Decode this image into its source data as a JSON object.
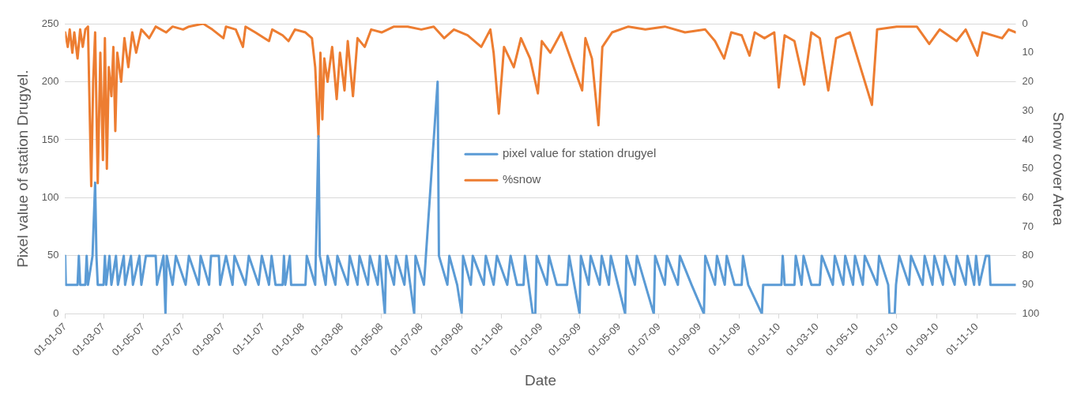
{
  "chart_data": {
    "type": "line",
    "xlabel": "Date",
    "ylabel": "Pixel value of station Drugyel.",
    "y2label": "Snow cover Area",
    "legend": "center",
    "grid": "y",
    "marker": "none",
    "line_style": "solid",
    "xlim": [
      "2007-01-01",
      "2010-12-31"
    ],
    "xticks": [
      {
        "value": "2007-01-01",
        "label": "01-01-07"
      },
      {
        "value": "2007-03-01",
        "label": "01-03-07"
      },
      {
        "value": "2007-05-01",
        "label": "01-05-07"
      },
      {
        "value": "2007-07-01",
        "label": "01-07-07"
      },
      {
        "value": "2007-09-01",
        "label": "01-09-07"
      },
      {
        "value": "2007-11-01",
        "label": "01-11-07"
      },
      {
        "value": "2008-01-01",
        "label": "01-01-08"
      },
      {
        "value": "2008-03-01",
        "label": "01-03-08"
      },
      {
        "value": "2008-05-01",
        "label": "01-05-08"
      },
      {
        "value": "2008-07-01",
        "label": "01-07-08"
      },
      {
        "value": "2008-09-01",
        "label": "01-09-08"
      },
      {
        "value": "2008-11-01",
        "label": "01-11-08"
      },
      {
        "value": "2009-01-01",
        "label": "01-01-09"
      },
      {
        "value": "2009-03-01",
        "label": "01-03-09"
      },
      {
        "value": "2009-05-01",
        "label": "01-05-09"
      },
      {
        "value": "2009-07-01",
        "label": "01-07-09"
      },
      {
        "value": "2009-09-01",
        "label": "01-09-09"
      },
      {
        "value": "2009-11-01",
        "label": "01-11-09"
      },
      {
        "value": "2010-01-01",
        "label": "01-01-10"
      },
      {
        "value": "2010-03-01",
        "label": "01-03-10"
      },
      {
        "value": "2010-05-01",
        "label": "01-05-10"
      },
      {
        "value": "2010-07-01",
        "label": "01-07-10"
      },
      {
        "value": "2010-09-01",
        "label": "01-09-10"
      },
      {
        "value": "2010-11-01",
        "label": "01-11-10"
      }
    ],
    "ylim": [
      0,
      250
    ],
    "yticks": [
      0,
      50,
      100,
      150,
      200,
      250
    ],
    "y2lim": [
      100,
      0
    ],
    "y2ticks": [
      0,
      10,
      20,
      30,
      40,
      50,
      60,
      70,
      80,
      90,
      100
    ],
    "series": [
      {
        "name": "pixel value for station drugyel",
        "color": "#5b9bd5",
        "x": [
          "2007-01-01",
          "2007-01-02",
          "2007-01-20",
          "2007-01-22",
          "2007-01-24",
          "2007-02-01",
          "2007-02-03",
          "2007-02-05",
          "2007-02-12",
          "2007-02-16",
          "2007-02-18",
          "2007-02-20",
          "2007-03-01",
          "2007-03-03",
          "2007-03-05",
          "2007-03-10",
          "2007-03-13",
          "2007-03-20",
          "2007-03-23",
          "2007-04-01",
          "2007-04-03",
          "2007-04-12",
          "2007-04-15",
          "2007-04-25",
          "2007-04-28",
          "2007-05-05",
          "2007-05-20",
          "2007-05-22",
          "2007-06-01",
          "2007-06-04",
          "2007-06-06",
          "2007-06-15",
          "2007-06-20",
          "2007-07-05",
          "2007-07-10",
          "2007-07-25",
          "2007-07-28",
          "2007-08-10",
          "2007-08-13",
          "2007-08-25",
          "2007-08-27",
          "2007-09-05",
          "2007-09-15",
          "2007-09-18",
          "2007-10-05",
          "2007-10-10",
          "2007-10-25",
          "2007-10-30",
          "2007-11-10",
          "2007-11-14",
          "2007-11-20",
          "2007-12-01",
          "2007-12-03",
          "2007-12-05",
          "2007-12-12",
          "2007-12-14",
          "2008-01-05",
          "2008-01-07",
          "2008-01-20",
          "2008-01-25",
          "2008-01-27",
          "2008-02-05",
          "2008-02-08",
          "2008-02-20",
          "2008-02-23",
          "2008-03-10",
          "2008-03-13",
          "2008-03-25",
          "2008-03-28",
          "2008-04-10",
          "2008-04-13",
          "2008-04-25",
          "2008-04-28",
          "2008-05-06",
          "2008-05-08",
          "2008-05-20",
          "2008-05-23",
          "2008-06-05",
          "2008-06-08",
          "2008-06-20",
          "2008-06-22",
          "2008-07-05",
          "2008-07-08",
          "2008-07-26",
          "2008-07-28",
          "2008-08-10",
          "2008-08-13",
          "2008-08-25",
          "2008-09-01",
          "2008-09-03",
          "2008-09-15",
          "2008-09-18",
          "2008-10-05",
          "2008-10-08",
          "2008-10-20",
          "2008-10-25",
          "2008-11-10",
          "2008-11-15",
          "2008-11-25",
          "2008-12-05",
          "2008-12-07",
          "2008-12-19",
          "2008-12-23",
          "2008-12-25",
          "2009-01-10",
          "2009-01-13",
          "2009-01-25",
          "2009-02-10",
          "2009-02-13",
          "2009-03-01",
          "2009-03-03",
          "2009-03-15",
          "2009-03-18",
          "2009-04-01",
          "2009-04-04",
          "2009-04-15",
          "2009-04-18",
          "2009-05-10",
          "2009-05-12",
          "2009-05-25",
          "2009-05-28",
          "2009-06-10",
          "2009-06-23",
          "2009-06-25",
          "2009-07-10",
          "2009-07-13",
          "2009-07-30",
          "2009-08-02",
          "2009-08-20",
          "2009-09-08",
          "2009-09-10",
          "2009-09-25",
          "2009-09-28",
          "2009-10-10",
          "2009-10-13",
          "2009-10-25",
          "2009-11-05",
          "2009-11-07",
          "2009-11-15",
          "2009-12-06",
          "2009-12-08",
          "2010-01-05",
          "2010-01-07",
          "2010-01-10",
          "2010-01-25",
          "2010-01-27",
          "2010-02-05",
          "2010-02-08",
          "2010-02-20",
          "2010-03-05",
          "2010-03-08",
          "2010-03-25",
          "2010-03-28",
          "2010-04-10",
          "2010-04-13",
          "2010-04-25",
          "2010-04-28",
          "2010-05-10",
          "2010-05-13",
          "2010-06-01",
          "2010-06-04",
          "2010-06-18",
          "2010-06-20",
          "2010-06-28",
          "2010-06-30",
          "2010-07-05",
          "2010-07-20",
          "2010-07-23",
          "2010-08-10",
          "2010-08-13",
          "2010-08-25",
          "2010-08-28",
          "2010-09-10",
          "2010-09-13",
          "2010-09-28",
          "2010-10-01",
          "2010-10-15",
          "2010-10-18",
          "2010-10-28",
          "2010-10-31",
          "2010-11-05",
          "2010-11-15",
          "2010-11-20",
          "2010-11-22",
          "2010-12-31"
        ],
        "values": [
          50,
          25,
          25,
          50,
          25,
          25,
          50,
          25,
          50,
          113,
          50,
          25,
          25,
          50,
          25,
          50,
          25,
          50,
          25,
          50,
          25,
          50,
          25,
          50,
          25,
          50,
          50,
          25,
          50,
          0,
          50,
          25,
          50,
          25,
          50,
          25,
          50,
          25,
          50,
          50,
          25,
          50,
          25,
          50,
          25,
          50,
          25,
          50,
          25,
          50,
          25,
          25,
          50,
          25,
          50,
          25,
          25,
          50,
          25,
          153,
          50,
          25,
          50,
          25,
          50,
          25,
          50,
          25,
          50,
          25,
          50,
          25,
          50,
          0,
          50,
          25,
          50,
          25,
          50,
          0,
          50,
          25,
          50,
          200,
          50,
          25,
          50,
          25,
          0,
          50,
          25,
          50,
          25,
          50,
          25,
          50,
          25,
          50,
          25,
          25,
          50,
          0,
          0,
          50,
          25,
          50,
          25,
          25,
          50,
          0,
          50,
          25,
          50,
          25,
          50,
          25,
          50,
          0,
          50,
          25,
          50,
          25,
          0,
          50,
          25,
          50,
          25,
          50,
          25,
          0,
          50,
          25,
          50,
          25,
          50,
          25,
          25,
          50,
          25,
          0,
          25,
          25,
          50,
          25,
          25,
          50,
          25,
          50,
          25,
          25,
          50,
          25,
          50,
          25,
          50,
          25,
          50,
          25,
          50,
          25,
          50,
          25,
          0,
          0,
          25,
          50,
          25,
          50,
          25,
          50,
          25,
          50,
          25,
          50,
          25,
          50,
          25,
          50,
          25,
          50,
          25,
          50,
          50,
          25,
          25
        ]
      },
      {
        "name": "%snow",
        "color": "#ed7d31",
        "axis": "y2",
        "x": [
          "2007-01-01",
          "2007-01-05",
          "2007-01-08",
          "2007-01-12",
          "2007-01-15",
          "2007-01-20",
          "2007-01-24",
          "2007-01-28",
          "2007-02-01",
          "2007-02-05",
          "2007-02-10",
          "2007-02-13",
          "2007-02-16",
          "2007-02-20",
          "2007-02-24",
          "2007-02-28",
          "2007-03-03",
          "2007-03-06",
          "2007-03-09",
          "2007-03-13",
          "2007-03-16",
          "2007-03-19",
          "2007-03-22",
          "2007-03-28",
          "2007-04-02",
          "2007-04-08",
          "2007-04-14",
          "2007-04-20",
          "2007-04-28",
          "2007-05-10",
          "2007-05-20",
          "2007-06-05",
          "2007-06-15",
          "2007-07-01",
          "2007-07-10",
          "2007-08-01",
          "2007-08-15",
          "2007-09-01",
          "2007-09-05",
          "2007-09-20",
          "2007-10-01",
          "2007-10-05",
          "2007-10-20",
          "2007-11-10",
          "2007-11-15",
          "2007-12-01",
          "2007-12-10",
          "2007-12-20",
          "2008-01-05",
          "2008-01-15",
          "2008-01-20",
          "2008-01-25",
          "2008-01-28",
          "2008-01-31",
          "2008-02-03",
          "2008-02-08",
          "2008-02-15",
          "2008-02-22",
          "2008-02-27",
          "2008-03-05",
          "2008-03-10",
          "2008-03-18",
          "2008-03-25",
          "2008-04-05",
          "2008-04-15",
          "2008-05-01",
          "2008-05-20",
          "2008-06-10",
          "2008-07-01",
          "2008-07-20",
          "2008-08-05",
          "2008-08-20",
          "2008-09-10",
          "2008-10-01",
          "2008-10-15",
          "2008-10-20",
          "2008-10-28",
          "2008-11-05",
          "2008-11-20",
          "2008-12-01",
          "2008-12-15",
          "2008-12-27",
          "2009-01-02",
          "2009-01-15",
          "2009-02-01",
          "2009-02-20",
          "2009-03-05",
          "2009-03-10",
          "2009-03-20",
          "2009-03-30",
          "2009-04-05",
          "2009-04-20",
          "2009-05-15",
          "2009-06-10",
          "2009-07-10",
          "2009-08-10",
          "2009-09-10",
          "2009-09-25",
          "2009-10-09",
          "2009-10-20",
          "2009-11-05",
          "2009-11-17",
          "2009-11-25",
          "2009-12-10",
          "2009-12-25",
          "2010-01-01",
          "2010-01-10",
          "2010-01-25",
          "2010-02-09",
          "2010-02-20",
          "2010-03-05",
          "2010-03-18",
          "2010-03-30",
          "2010-04-20",
          "2010-05-24",
          "2010-06-01",
          "2010-07-01",
          "2010-08-01",
          "2010-08-20",
          "2010-09-05",
          "2010-10-01",
          "2010-10-15",
          "2010-11-02",
          "2010-11-10",
          "2010-12-10",
          "2010-12-20",
          "2010-12-31"
        ],
        "values": [
          3,
          8,
          2,
          10,
          3,
          12,
          2,
          8,
          2,
          1,
          56,
          20,
          3,
          55,
          10,
          47,
          5,
          50,
          15,
          25,
          8,
          37,
          10,
          20,
          5,
          15,
          3,
          10,
          2,
          5,
          1,
          3,
          1,
          2,
          1,
          0,
          2,
          5,
          1,
          2,
          8,
          1,
          3,
          6,
          2,
          4,
          6,
          2,
          3,
          5,
          15,
          39,
          10,
          33,
          12,
          20,
          8,
          26,
          10,
          23,
          6,
          25,
          5,
          8,
          2,
          3,
          1,
          1,
          2,
          1,
          5,
          2,
          4,
          8,
          2,
          10,
          31,
          8,
          15,
          5,
          12,
          24,
          6,
          10,
          3,
          15,
          23,
          5,
          12,
          35,
          8,
          3,
          1,
          2,
          1,
          3,
          2,
          6,
          12,
          3,
          4,
          11,
          3,
          5,
          3,
          22,
          4,
          6,
          21,
          3,
          5,
          23,
          5,
          3,
          28,
          2,
          1,
          1,
          7,
          2,
          6,
          2,
          11,
          3,
          5,
          2,
          3
        ]
      }
    ]
  }
}
